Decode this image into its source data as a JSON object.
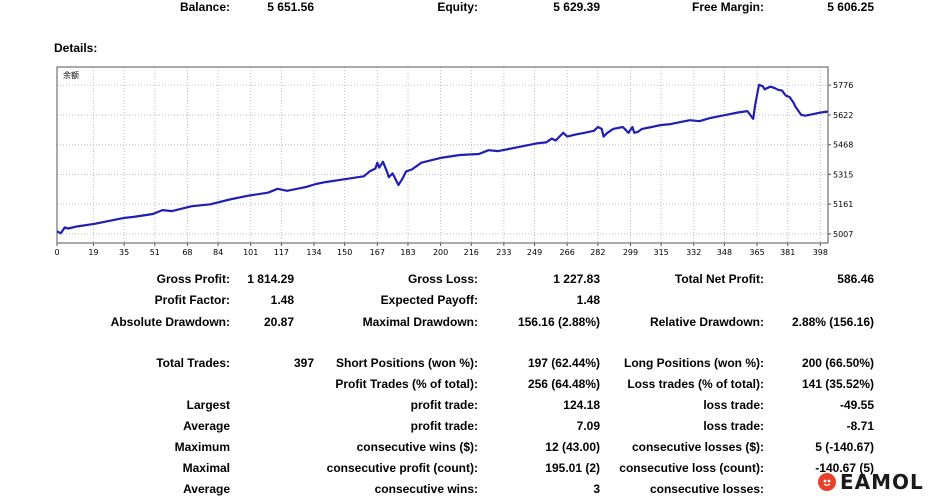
{
  "summary": {
    "balance_label": "Balance:",
    "balance_value": "5 651.56",
    "equity_label": "Equity:",
    "equity_value": "5 629.39",
    "free_margin_label": "Free Margin:",
    "free_margin_value": "5 606.25"
  },
  "details_label": "Details:",
  "chart_data": {
    "type": "line",
    "legend": "余额",
    "line_color": "#1f1fb3",
    "grid": true,
    "xlim": [
      0,
      402
    ],
    "ylim": [
      4960,
      5870
    ],
    "x_ticks": [
      "0",
      "19",
      "35",
      "51",
      "68",
      "84",
      "101",
      "117",
      "134",
      "150",
      "167",
      "183",
      "200",
      "216",
      "233",
      "249",
      "266",
      "282",
      "299",
      "315",
      "332",
      "348",
      "365",
      "381",
      "398"
    ],
    "y_ticks": [
      "5776",
      "5622",
      "5468",
      "5315",
      "5161",
      "5007"
    ],
    "series": [
      {
        "x": [
          0,
          2,
          4,
          6,
          10,
          20,
          30,
          35,
          40,
          50,
          55,
          60,
          70,
          80,
          90,
          100,
          110,
          115,
          120,
          130,
          135,
          140,
          150,
          160,
          163,
          166,
          167,
          168,
          170,
          172,
          173,
          175,
          177,
          178,
          180,
          182,
          185,
          190,
          200,
          210,
          220,
          225,
          230,
          240,
          250,
          255,
          258,
          260,
          262,
          264,
          266,
          270,
          275,
          280,
          282,
          284,
          285,
          287,
          290,
          295,
          298,
          300,
          301,
          303,
          305,
          310,
          315,
          320,
          325,
          330,
          335,
          340,
          345,
          350,
          355,
          360,
          363,
          364,
          366,
          368,
          369,
          370,
          372,
          374,
          376,
          378,
          380,
          382,
          384,
          385,
          388,
          390,
          392,
          395,
          398,
          402
        ],
        "values": [
          5020,
          5010,
          5040,
          5035,
          5045,
          5060,
          5080,
          5090,
          5095,
          5110,
          5130,
          5125,
          5150,
          5160,
          5185,
          5205,
          5220,
          5240,
          5230,
          5250,
          5265,
          5275,
          5290,
          5305,
          5330,
          5345,
          5375,
          5350,
          5380,
          5330,
          5300,
          5320,
          5280,
          5260,
          5290,
          5330,
          5340,
          5375,
          5400,
          5415,
          5420,
          5440,
          5435,
          5455,
          5475,
          5480,
          5500,
          5490,
          5510,
          5530,
          5510,
          5520,
          5530,
          5540,
          5560,
          5550,
          5510,
          5530,
          5550,
          5560,
          5530,
          5560,
          5530,
          5535,
          5550,
          5560,
          5570,
          5575,
          5585,
          5595,
          5590,
          5605,
          5615,
          5625,
          5635,
          5642,
          5602,
          5672,
          5778,
          5770,
          5754,
          5760,
          5768,
          5762,
          5752,
          5748,
          5722,
          5715,
          5686,
          5665,
          5623,
          5618,
          5622,
          5628,
          5634,
          5640
        ]
      }
    ]
  },
  "stats": {
    "gross_profit_label": "Gross Profit:",
    "gross_profit": "1 814.29",
    "gross_loss_label": "Gross Loss:",
    "gross_loss": "1 227.83",
    "total_net_profit_label": "Total Net Profit:",
    "total_net_profit": "586.46",
    "profit_factor_label": "Profit Factor:",
    "profit_factor": "1.48",
    "expected_payoff_label": "Expected Payoff:",
    "expected_payoff": "1.48",
    "absolute_drawdown_label": "Absolute Drawdown:",
    "absolute_drawdown": "20.87",
    "maximal_drawdown_label": "Maximal Drawdown:",
    "maximal_drawdown": "156.16 (2.88%)",
    "relative_drawdown_label": "Relative Drawdown:",
    "relative_drawdown": "2.88% (156.16)",
    "total_trades_label": "Total Trades:",
    "total_trades": "397",
    "short_positions_label": "Short Positions (won %):",
    "short_positions": "197 (62.44%)",
    "long_positions_label": "Long Positions (won %):",
    "long_positions": "200 (66.50%)",
    "profit_trades_label": "Profit Trades (% of total):",
    "profit_trades": "256 (64.48%)",
    "loss_trades_label": "Loss trades (% of total):",
    "loss_trades": "141 (35.52%)",
    "largest_label": "Largest",
    "largest_profit_label": "profit trade:",
    "largest_profit": "124.18",
    "largest_loss_label": "loss trade:",
    "largest_loss": "-49.55",
    "average_label": "Average",
    "average_profit_label": "profit trade:",
    "average_profit": "7.09",
    "average_loss_label": "loss trade:",
    "average_loss": "-8.71",
    "maximum_label": "Maximum",
    "max_consec_wins_label": "consecutive wins ($):",
    "max_consec_wins": "12 (43.00)",
    "max_consec_losses_label": "consecutive losses ($):",
    "max_consec_losses": "5 (-140.67)",
    "maximal_label": "Maximal",
    "maximal_consec_profit_label": "consecutive profit (count):",
    "maximal_consec_profit": "195.01 (2)",
    "maximal_consec_loss_label": "consecutive loss (count):",
    "maximal_consec_loss": "-140.67 (5)",
    "average2_label": "Average",
    "avg_consec_wins_label": "consecutive wins:",
    "avg_consec_wins": "3",
    "avg_consec_losses_label": "consecutive losses:",
    "avg_consec_losses": ""
  },
  "logo": {
    "text": "EAMOL",
    "color": "#e8402b"
  }
}
